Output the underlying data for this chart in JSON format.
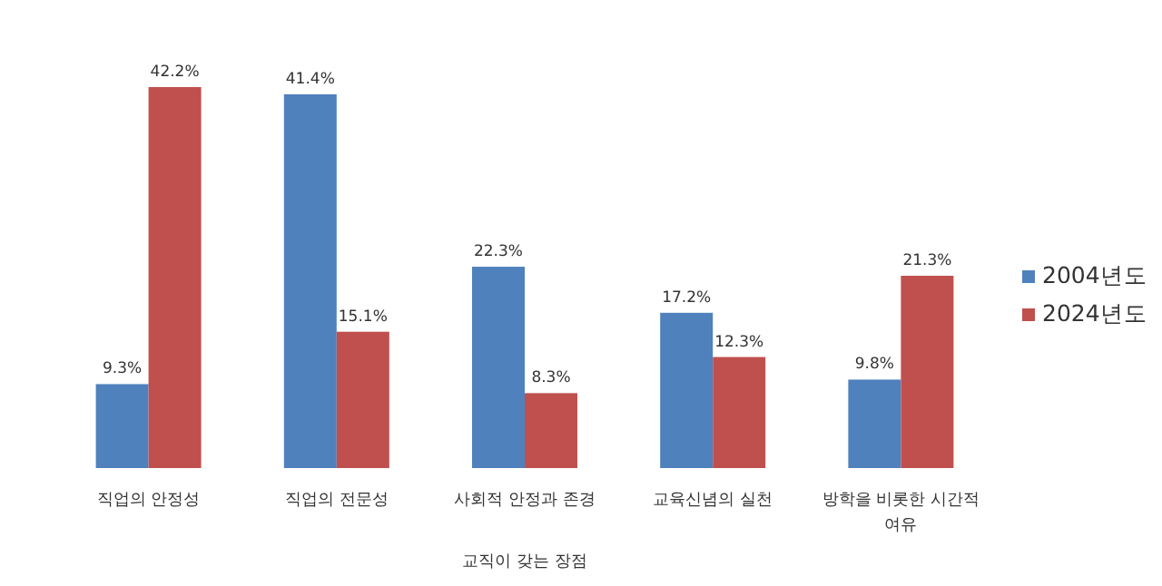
{
  "chart_data": {
    "type": "bar",
    "xlabel": "교직이 갖는 장점",
    "categories": [
      "직업의 안정성",
      "직업의 전문성",
      "사회적 안정과 존경",
      "교육신념의 실천",
      "방학을 비롯한 시간적 여유"
    ],
    "series": [
      {
        "name": "2004년도",
        "color": "#4f81bd",
        "values": [
          9.3,
          41.4,
          22.3,
          17.2,
          9.8
        ],
        "value_labels": [
          "9.3%",
          "41.4%",
          "22.3%",
          "17.2%",
          "9.8%"
        ]
      },
      {
        "name": "2024년도",
        "color": "#c0504d",
        "values": [
          42.2,
          15.1,
          8.3,
          12.3,
          21.3
        ],
        "value_labels": [
          "42.2%",
          "15.1%",
          "8.3%",
          "12.3%",
          "21.3%"
        ]
      }
    ],
    "legend": "right"
  }
}
